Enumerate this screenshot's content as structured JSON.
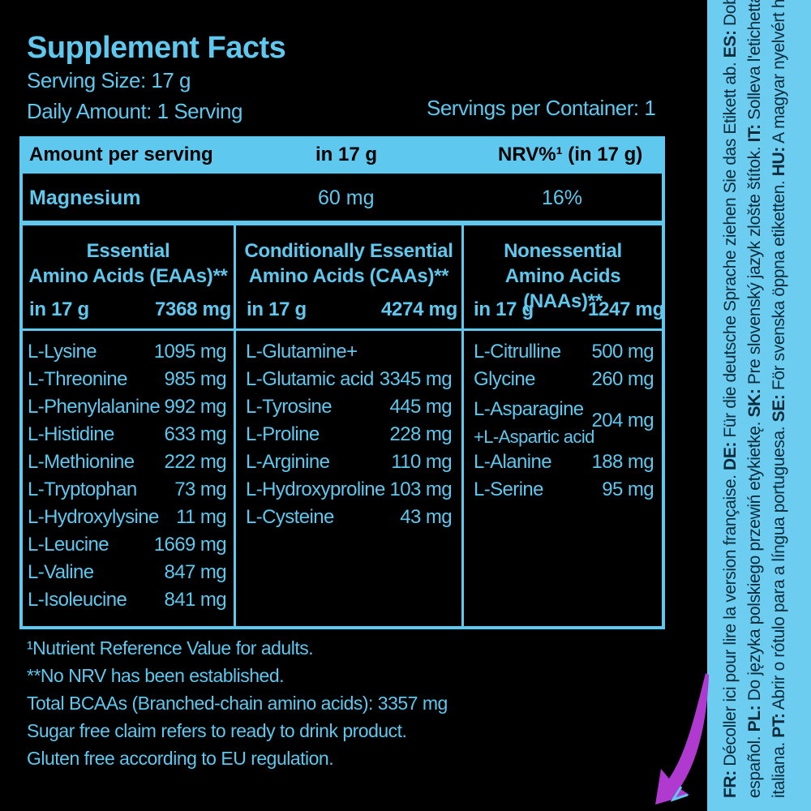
{
  "title": "Supplement Facts",
  "serving_size": "Serving Size: 17 g",
  "daily_amount": "Daily Amount: 1 Serving",
  "servings_per_container": "Servings per Container: 1",
  "header": {
    "amount_per_serving": "Amount per serving",
    "in_17g": "in 17 g",
    "nrv": "NRV%¹ (in 17 g)"
  },
  "magnesium": {
    "name": "Magnesium",
    "amount": "60 mg",
    "nrv": "16%"
  },
  "columns": [
    {
      "title_line1": "Essential",
      "title_line2": "Amino Acids (EAAs)**",
      "total_label": "in 17 g",
      "total_value": "7368 mg",
      "items": [
        {
          "name": "L-Lysine",
          "value": "1095 mg"
        },
        {
          "name": "L-Threonine",
          "value": "985 mg"
        },
        {
          "name": "L-Phenylalanine",
          "value": "992 mg"
        },
        {
          "name": "L-Histidine",
          "value": "633 mg"
        },
        {
          "name": "L-Methionine",
          "value": "222 mg"
        },
        {
          "name": "L-Tryptophan",
          "value": "73 mg"
        },
        {
          "name": "L-Hydroxylysine",
          "value": "11 mg"
        },
        {
          "name": "L-Leucine",
          "value": "1669 mg"
        },
        {
          "name": "L-Valine",
          "value": "847 mg"
        },
        {
          "name": "L-Isoleucine",
          "value": "841 mg"
        }
      ]
    },
    {
      "title_line1": "Conditionally Essential",
      "title_line2": "Amino Acids (CAAs)**",
      "total_label": "in 17 g",
      "total_value": "4274 mg",
      "items": [
        {
          "name": "L-Glutamine+",
          "value": ""
        },
        {
          "name": "L-Glutamic acid",
          "value": "3345 mg"
        },
        {
          "name": "L-Tyrosine",
          "value": "445 mg"
        },
        {
          "name": "L-Proline",
          "value": "228 mg"
        },
        {
          "name": "L-Arginine",
          "value": "110 mg"
        },
        {
          "name": "L-Hydroxyproline",
          "value": "103 mg"
        },
        {
          "name": "L-Cysteine",
          "value": "43 mg"
        }
      ]
    },
    {
      "title_line1": "Nonessential",
      "title_line2": "Amino Acids (NAAs)**",
      "total_label": "in 17 g",
      "total_value": "1247 mg",
      "items": [
        {
          "name": "L-Citrulline",
          "value": "500 mg"
        },
        {
          "name": "Glycine",
          "value": "260 mg"
        },
        {
          "name": "L-Asparagine",
          "name2": "+L-Aspartic acid",
          "value": "204 mg"
        },
        {
          "name": "L-Alanine",
          "value": "188 mg"
        },
        {
          "name": "L-Serine",
          "value": "95 mg"
        }
      ]
    }
  ],
  "footnotes": [
    "¹Nutrient Reference Value for adults.",
    "**No NRV has been established.",
    "Total BCAAs (Branched-chain amino acids): 3357 mg",
    "Sugar free claim refers to ready to drink product.",
    "Gluten free according to EU regulation."
  ],
  "side_strip": {
    "line1": [
      {
        "code": "FR:",
        "text": " Décoller ici pour lire la version française. "
      },
      {
        "code": "DE:",
        "text": " Für die deutsche Sprache ziehen Sie das Etikett ab. "
      },
      {
        "code": "ES:",
        "text": " Doble la etiqueta para el idioma"
      }
    ],
    "line2": [
      {
        "code": "",
        "text": "español. "
      },
      {
        "code": "PL:",
        "text": " Do języka polskiego przewiń etykietkę. "
      },
      {
        "code": "SK:",
        "text": " Pre slovenský jazyk zlošte štítok. "
      },
      {
        "code": "IT:",
        "text": " Solleva l'etichetta per scegliere la lingua"
      }
    ],
    "line3": [
      {
        "code": "",
        "text": "italiana. "
      },
      {
        "code": "PT:",
        "text": " Abrir o rótulo para a língua portuguesa. "
      },
      {
        "code": "SE:",
        "text": " För svenska öppna etiketten. "
      },
      {
        "code": "HU:",
        "text": " A magyar nyelvért hajtsa fel a címkét!"
      }
    ]
  },
  "colors": {
    "text": "#5ec8ef",
    "background": "#000000",
    "strip": "#6ccdf1",
    "arrow": "#b03ad0"
  }
}
